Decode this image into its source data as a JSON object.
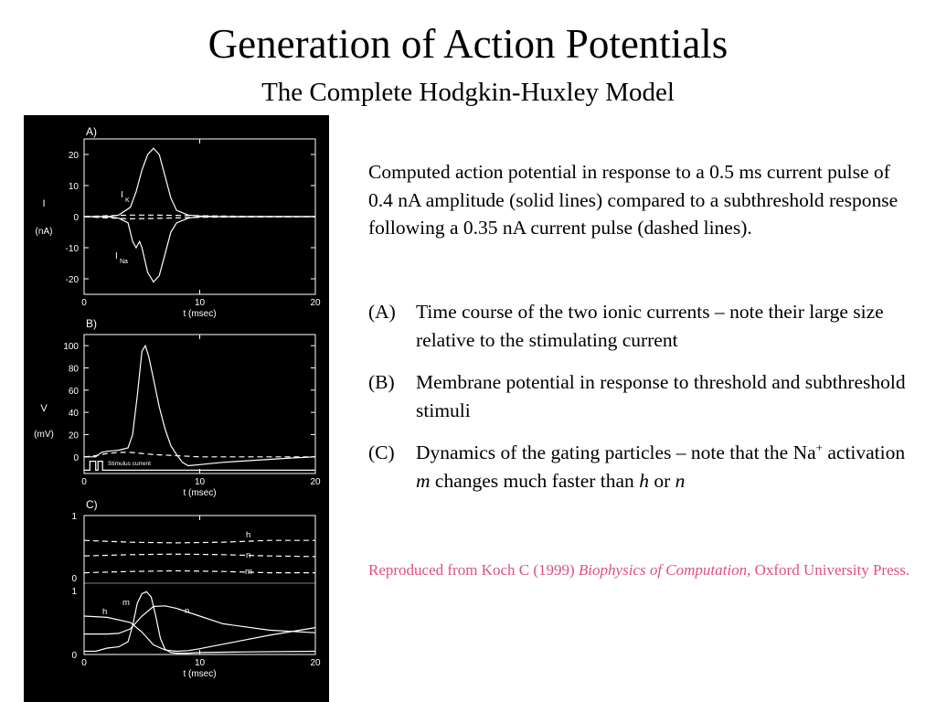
{
  "slide": {
    "title": "Generation of Action Potentials",
    "subtitle": "The Complete Hodgkin-Huxley Model",
    "caption": "Computed action potential in response to a 0.5 ms current pulse of 0.4 nA amplitude (solid lines) compared to a subthreshold response following a 0.35 nA current pulse (dashed lines).",
    "items": [
      {
        "label": "(A)",
        "text": "Time course of the two ionic currents – note their large size relative to the stimulating current"
      },
      {
        "label": "(B)",
        "text": "Membrane potential in response to threshold and subthreshold stimuli"
      },
      {
        "label": "(C)",
        "pre": "Dynamics of the gating particles – note that the Na",
        "sup": "+",
        "mid1": " activation ",
        "m": "m",
        "mid2": " changes much faster than ",
        "h": "h",
        "mid3": " or ",
        "n": "n"
      }
    ],
    "reference": {
      "pre": "Reproduced from Koch C (1999) ",
      "book": "Biophysics of Computation",
      "post": ", Oxford University Press."
    }
  },
  "colors": {
    "background": "#ffffff",
    "figure_bg": "#000000",
    "trace": "#ffffff",
    "reference": "#e0507a"
  },
  "chart_data": [
    {
      "panel": "A)",
      "type": "line",
      "xlabel": "t (msec)",
      "ylabel": "I",
      "ylabel_unit": "(nA)",
      "xlim": [
        0,
        20
      ],
      "ylim": [
        -25,
        25
      ],
      "xticks": [
        "0",
        "10",
        "20"
      ],
      "yticks": [
        "20",
        "10",
        "0",
        "-10",
        "-20"
      ],
      "annotations": [
        "I",
        "K",
        "I",
        "Na"
      ],
      "series": [
        {
          "name": "IK",
          "style": "solid",
          "x": [
            0,
            1,
            2,
            3,
            4,
            4.5,
            5,
            5.5,
            6,
            6.5,
            7,
            7.5,
            8,
            9,
            10,
            12,
            15,
            20
          ],
          "y": [
            0,
            0,
            0,
            0.5,
            3,
            8,
            15,
            20,
            22,
            20,
            13,
            6,
            2,
            0.5,
            0.2,
            0,
            0,
            0
          ]
        },
        {
          "name": "INa",
          "style": "solid",
          "x": [
            0,
            1,
            2,
            3,
            3.8,
            4.2,
            4.5,
            4.8,
            5,
            5.5,
            6,
            6.5,
            7,
            7.5,
            8,
            9,
            10,
            12,
            15,
            20
          ],
          "y": [
            0,
            0,
            0,
            -0.5,
            -2,
            -8,
            -10,
            -8,
            -10,
            -18,
            -21,
            -19,
            -12,
            -5,
            -2,
            -0.5,
            0,
            0,
            0,
            0
          ]
        },
        {
          "name": "IK subthreshold",
          "style": "dashed",
          "x": [
            0,
            2,
            4,
            6,
            8,
            10,
            14,
            20
          ],
          "y": [
            0,
            0.3,
            0.5,
            0.5,
            0.4,
            0.3,
            0.1,
            0
          ]
        },
        {
          "name": "INa subthreshold",
          "style": "dashed",
          "x": [
            0,
            2,
            4,
            6,
            8,
            10,
            14,
            20
          ],
          "y": [
            0,
            -0.4,
            -0.7,
            -0.6,
            -0.4,
            -0.2,
            -0.1,
            0
          ]
        }
      ]
    },
    {
      "panel": "B)",
      "type": "line",
      "xlabel": "t (msec)",
      "ylabel": "V",
      "ylabel_unit": "(mV)",
      "xlim": [
        0,
        20
      ],
      "ylim": [
        -15,
        110
      ],
      "xticks": [
        "0",
        "10",
        "20"
      ],
      "yticks": [
        "100",
        "80",
        "60",
        "40",
        "20",
        "0"
      ],
      "annotations": [
        "Stimulus current"
      ],
      "series": [
        {
          "name": "V",
          "style": "solid",
          "x": [
            0,
            1,
            1.5,
            2,
            3,
            3.8,
            4.2,
            4.6,
            5,
            5.3,
            5.6,
            6,
            6.5,
            7,
            7.5,
            8,
            8.5,
            9,
            10,
            12,
            15,
            18,
            20
          ],
          "y": [
            0,
            0,
            4,
            5,
            6,
            8,
            20,
            55,
            95,
            100,
            90,
            70,
            45,
            25,
            10,
            2,
            -5,
            -8,
            -7,
            -5,
            -3,
            -1,
            0
          ]
        },
        {
          "name": "V subthreshold",
          "style": "dashed",
          "x": [
            0,
            1,
            2,
            3,
            4,
            5,
            6,
            8,
            10,
            14,
            20
          ],
          "y": [
            0,
            1,
            3,
            4,
            4,
            3,
            2,
            1,
            0,
            0,
            0
          ]
        },
        {
          "name": "Stimulus current",
          "style": "solid",
          "x": [
            0,
            0.5,
            0.5,
            1,
            1,
            1.2,
            1.2,
            1.6,
            1.6,
            20
          ],
          "y": [
            -12,
            -12,
            -4,
            -4,
            -12,
            -12,
            -4,
            -4,
            -12,
            -12
          ]
        }
      ]
    },
    {
      "panel": "C)",
      "type": "line",
      "xlabel": "t (msec)",
      "xlim": [
        0,
        20
      ],
      "xticks": [
        "0",
        "10",
        "20"
      ],
      "upper": {
        "ylim": [
          0,
          1
        ],
        "yticks": [
          "1",
          "0"
        ],
        "series": [
          {
            "name": "h",
            "style": "dashed",
            "x": [
              0,
              4,
              8,
              12,
              16,
              20
            ],
            "y": [
              0.6,
              0.57,
              0.56,
              0.57,
              0.6,
              0.6
            ]
          },
          {
            "name": "n",
            "style": "dashed",
            "x": [
              0,
              4,
              8,
              12,
              16,
              20
            ],
            "y": [
              0.35,
              0.37,
              0.38,
              0.37,
              0.35,
              0.34
            ]
          },
          {
            "name": "m",
            "style": "dashed",
            "x": [
              0,
              4,
              8,
              12,
              16,
              20
            ],
            "y": [
              0.08,
              0.1,
              0.11,
              0.1,
              0.08,
              0.08
            ]
          }
        ]
      },
      "lower": {
        "ylim": [
          0,
          1
        ],
        "yticks": [
          "1",
          "0"
        ],
        "series": [
          {
            "name": "h",
            "style": "solid",
            "x": [
              0,
              2,
              4,
              5,
              6,
              7,
              8,
              9,
              10,
              12,
              16,
              20
            ],
            "y": [
              0.6,
              0.58,
              0.5,
              0.35,
              0.15,
              0.07,
              0.05,
              0.06,
              0.09,
              0.16,
              0.3,
              0.42
            ]
          },
          {
            "name": "m",
            "style": "solid",
            "x": [
              0,
              1,
              2,
              3,
              3.8,
              4.2,
              4.6,
              5,
              5.4,
              5.8,
              6.2,
              6.6,
              7,
              7.5,
              8,
              9,
              10,
              14,
              20
            ],
            "y": [
              0.05,
              0.05,
              0.1,
              0.12,
              0.2,
              0.45,
              0.8,
              0.95,
              0.98,
              0.9,
              0.6,
              0.25,
              0.08,
              0.03,
              0.02,
              0.02,
              0.03,
              0.04,
              0.05
            ]
          },
          {
            "name": "n",
            "style": "solid",
            "x": [
              0,
              2,
              3,
              4,
              5,
              6,
              7,
              8,
              10,
              12,
              16,
              20
            ],
            "y": [
              0.32,
              0.32,
              0.33,
              0.4,
              0.6,
              0.75,
              0.76,
              0.72,
              0.6,
              0.48,
              0.38,
              0.34
            ]
          }
        ]
      },
      "annotations": [
        "h",
        "n",
        "m",
        "h",
        "m",
        "n"
      ]
    }
  ]
}
